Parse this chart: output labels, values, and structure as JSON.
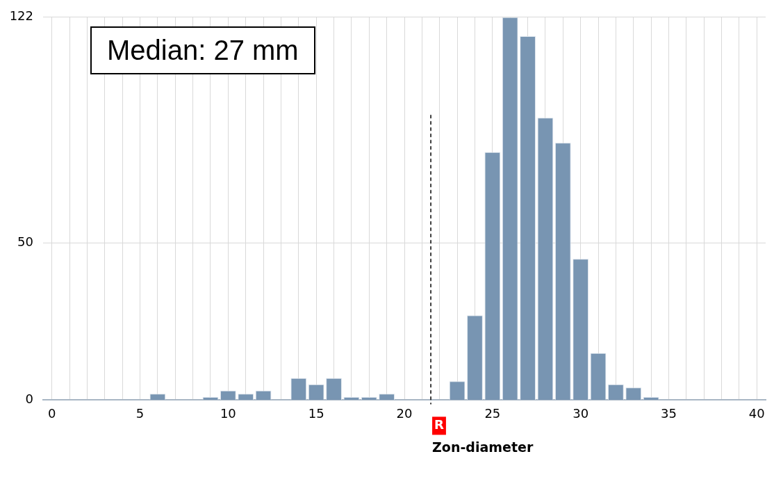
{
  "chart_data": {
    "type": "histogram",
    "xlabel": "Zon-diameter",
    "bins": [
      -0.5,
      0.5,
      1.5,
      2.5,
      3.5,
      4.5,
      5.5,
      6.5,
      7.5,
      8.5,
      9.5,
      10.5,
      11.5,
      12.5,
      13.5,
      14.5,
      15.5,
      16.5,
      17.5,
      18.5,
      19.5,
      20.5,
      21.5,
      22.5,
      23.5,
      24.5,
      25.5,
      26.5,
      27.5,
      28.5,
      29.5,
      30.5,
      31.5,
      32.5,
      33.5,
      34.5,
      35.5,
      36.5,
      37.5,
      38.5,
      39.5,
      40.5
    ],
    "values": [
      0,
      0,
      0,
      0,
      0,
      0,
      2,
      0,
      0,
      1,
      3,
      2,
      3,
      0,
      7,
      5,
      7,
      1,
      1,
      2,
      0,
      0,
      0,
      6,
      27,
      79,
      122,
      116,
      90,
      82,
      45,
      15,
      5,
      4,
      1,
      0,
      0,
      0,
      0,
      0,
      0
    ],
    "color": "#7895b2",
    "xlim": [
      -0.5,
      40.5
    ],
    "xticks": [
      0,
      {
        "value": 1,
        "label": null
      },
      {
        "value": 2,
        "label": null
      },
      {
        "value": 3,
        "label": null
      },
      {
        "value": 4,
        "label": null
      },
      5,
      {
        "value": 6,
        "label": null
      },
      {
        "value": 7,
        "label": null
      },
      {
        "value": 8,
        "label": null
      },
      {
        "value": 9,
        "label": null
      },
      10,
      {
        "value": 11,
        "label": null
      },
      {
        "value": 12,
        "label": null
      },
      {
        "value": 13,
        "label": null
      },
      {
        "value": 14,
        "label": null
      },
      15,
      {
        "value": 16,
        "label": null
      },
      {
        "value": 17,
        "label": null
      },
      {
        "value": 18,
        "label": null
      },
      {
        "value": 19,
        "label": null
      },
      20,
      {
        "value": 21,
        "label": null
      },
      {
        "value": 22,
        "label": null
      },
      {
        "value": 23,
        "label": null
      },
      {
        "value": 24,
        "label": null
      },
      25,
      {
        "value": 26,
        "label": null
      },
      {
        "value": 27,
        "label": null
      },
      {
        "value": 28,
        "label": null
      },
      {
        "value": 29,
        "label": null
      },
      30,
      {
        "value": 31,
        "label": null
      },
      {
        "value": 32,
        "label": null
      },
      {
        "value": 33,
        "label": null
      },
      {
        "value": 34,
        "label": null
      },
      35,
      {
        "value": 36,
        "label": null
      },
      {
        "value": 37,
        "label": null
      },
      {
        "value": 38,
        "label": null
      },
      {
        "value": 39,
        "label": null
      },
      40
    ],
    "ylim": [
      0,
      122
    ],
    "yticks": [
      0,
      50,
      122
    ],
    "grid": true,
    "legend": false,
    "ref_lines": [
      {
        "axis": "x",
        "value": 21.5,
        "label": "R",
        "line_style": "dashed"
      }
    ],
    "annotations": [
      "Median: 27 mm"
    ]
  }
}
